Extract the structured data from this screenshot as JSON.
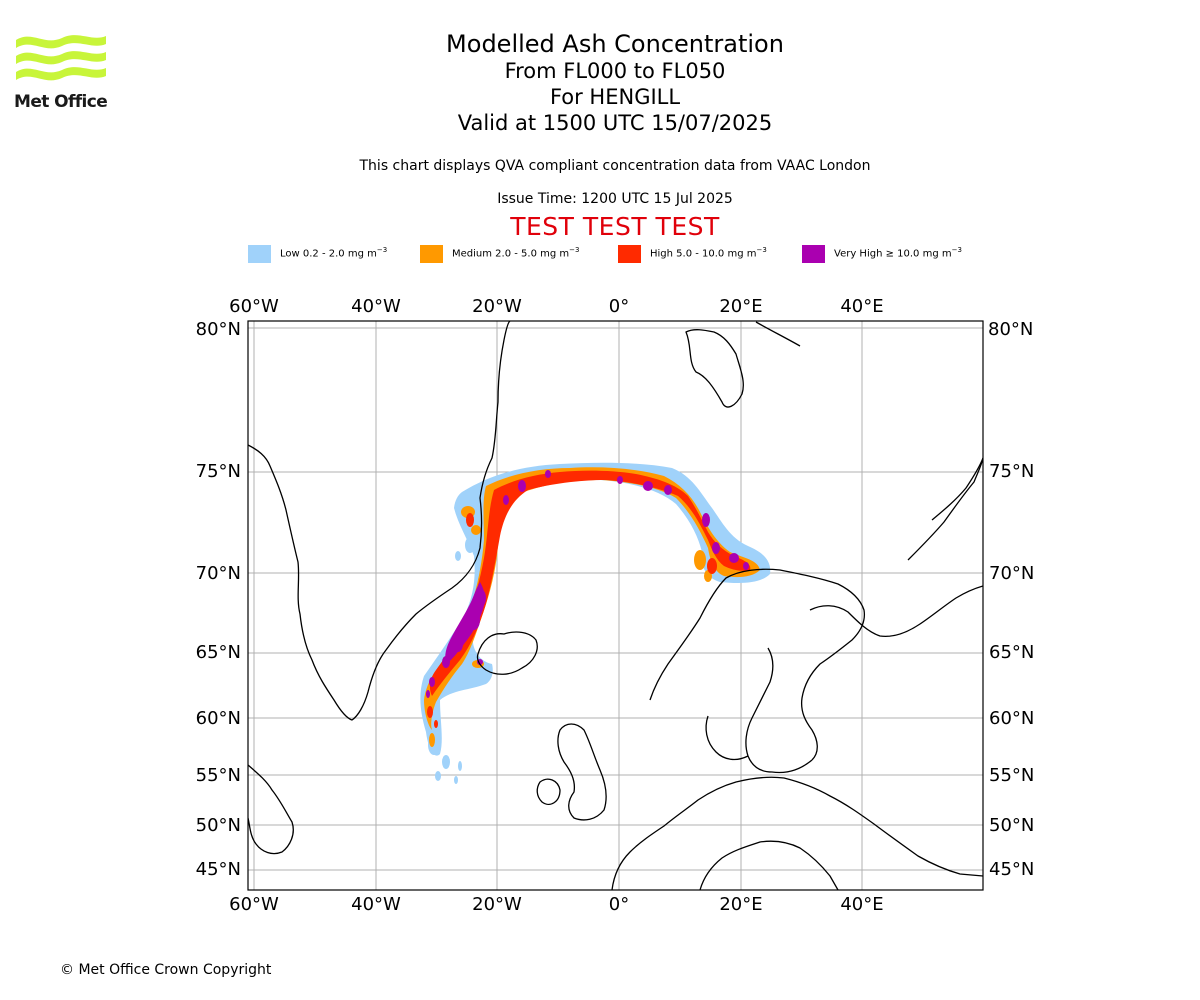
{
  "header": {
    "logo_text": "Met Office",
    "logo_color": "#c8f53a",
    "title": "Modelled Ash Concentration",
    "level_range": "From FL000 to FL050",
    "volcano": "For HENGILL",
    "valid_time": "Valid at 1500 UTC 15/07/2025",
    "description": "This chart displays QVA compliant concentration data from VAAC London",
    "issue_time": "Issue Time: 1200 UTC 15 Jul 2025",
    "test_banner": "TEST TEST TEST"
  },
  "legend": [
    {
      "label": "Low 0.2 - 2.0 mg m",
      "unit_exp": "−3",
      "color": "#a0d2fa"
    },
    {
      "label": "Medium 2.0 - 5.0 mg m",
      "unit_exp": "−3",
      "color": "#ff9900"
    },
    {
      "label": "High 5.0 - 10.0 mg m",
      "unit_exp": "−3",
      "color": "#ff2a00"
    },
    {
      "label": "Very High  ≥  10.0 mg m",
      "unit_exp": "−3",
      "color": "#aa00b0"
    }
  ],
  "map": {
    "lon_labels": [
      "60°W",
      "40°W",
      "20°W",
      "0°",
      "20°E",
      "40°E"
    ],
    "lat_labels": [
      "80°N",
      "75°N",
      "70°N",
      "65°N",
      "60°N",
      "55°N",
      "50°N",
      "45°N"
    ],
    "gridlines": true
  },
  "footer": {
    "copyright": "© Met Office Crown Copyright"
  }
}
